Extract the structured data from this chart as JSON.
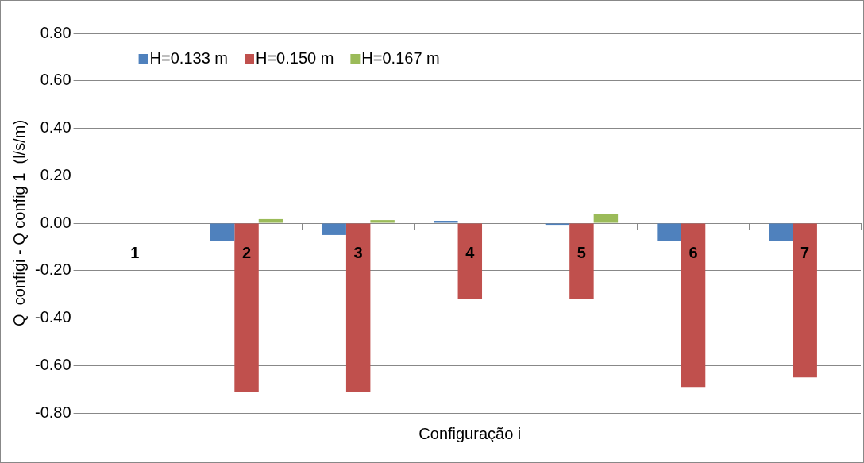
{
  "chart_data": {
    "type": "bar",
    "xlabel": "Configuração i",
    "ylabel": "Q  configi - Q config 1  (l/s/m)",
    "categories": [
      "1",
      "2",
      "3",
      "4",
      "5",
      "6",
      "7"
    ],
    "series": [
      {
        "name": "H=0.133 m",
        "color": "#4f81bd",
        "values": [
          0,
          -0.075,
          -0.05,
          0.01,
          -0.007,
          -0.075,
          -0.075
        ]
      },
      {
        "name": "H=0.150 m",
        "color": "#c0504d",
        "values": [
          0,
          -0.71,
          -0.71,
          -0.32,
          -0.32,
          -0.69,
          -0.65
        ]
      },
      {
        "name": "H=0.167 m",
        "color": "#9bbb59",
        "values": [
          0,
          0.017,
          0.013,
          0,
          0.039,
          0,
          0
        ]
      }
    ],
    "ylim": [
      -0.8,
      0.8
    ],
    "yticks": [
      {
        "value": 0.8,
        "label": "0.80"
      },
      {
        "value": 0.6,
        "label": "0.60"
      },
      {
        "value": 0.4,
        "label": "0.40"
      },
      {
        "value": 0.2,
        "label": "0.20"
      },
      {
        "value": 0,
        "label": "0.00"
      },
      {
        "value": -0.2,
        "label": "-0.20"
      },
      {
        "value": -0.4,
        "label": "-0.40"
      },
      {
        "value": -0.6,
        "label": "-0.60"
      },
      {
        "value": -0.8,
        "label": "-0.80"
      }
    ],
    "grid": "y",
    "legend": "top left"
  }
}
